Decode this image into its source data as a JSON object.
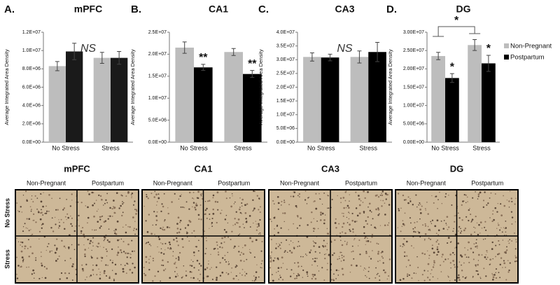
{
  "chart_data": [
    {
      "type": "bar",
      "panel_label": "A.",
      "title": "mPFC",
      "y_label": "Average Integrated Area Density",
      "categories": [
        "No Stress",
        "Stress"
      ],
      "series": [
        {
          "color": "#bdbdbd",
          "values": [
            8300000,
            9200000
          ],
          "errors": [
            500000,
            600000
          ]
        },
        {
          "color": "#1a1a1a",
          "values": [
            9900000,
            9200000
          ],
          "errors": [
            900000,
            700000
          ]
        }
      ],
      "annotation": "NS",
      "ylim": [
        0,
        12000000
      ],
      "yticks": [
        {
          "value": 0,
          "label": "0.0E+00"
        },
        {
          "value": 2000000,
          "label": "2.0E+06"
        },
        {
          "value": 4000000,
          "label": "4.0E+06"
        },
        {
          "value": 6000000,
          "label": "6.0E+06"
        },
        {
          "value": 8000000,
          "label": "8.0E+06"
        },
        {
          "value": 10000000,
          "label": "1.0E+07"
        },
        {
          "value": 12000000,
          "label": "1.2E+07"
        }
      ]
    },
    {
      "type": "bar",
      "panel_label": "B.",
      "title": "CA1",
      "y_label": "Average Integrated Area Density",
      "categories": [
        "No Stress",
        "Stress"
      ],
      "series": [
        {
          "color": "#bdbdbd",
          "values": [
            21500000,
            20500000
          ],
          "errors": [
            1300000,
            800000
          ]
        },
        {
          "color": "#000000",
          "values": [
            17000000,
            15500000
          ],
          "errors": [
            700000,
            800000
          ],
          "significance": [
            "**",
            "**"
          ]
        }
      ],
      "ylim": [
        0,
        25000000
      ],
      "yticks": [
        {
          "value": 0,
          "label": "0.0E+00"
        },
        {
          "value": 5000000,
          "label": "5.0E+06"
        },
        {
          "value": 10000000,
          "label": "1.0E+07"
        },
        {
          "value": 15000000,
          "label": "1.5E+07"
        },
        {
          "value": 20000000,
          "label": "2.0E+07"
        },
        {
          "value": 25000000,
          "label": "2.5E+07"
        }
      ]
    },
    {
      "type": "bar",
      "panel_label": "C.",
      "title": "CA3",
      "y_label": "Average Integrated Area Density",
      "categories": [
        "No Stress",
        "Stress"
      ],
      "series": [
        {
          "color": "#bdbdbd",
          "values": [
            31000000,
            31000000
          ],
          "errors": [
            1500000,
            2200000
          ]
        },
        {
          "color": "#000000",
          "values": [
            30800000,
            32800000
          ],
          "errors": [
            1200000,
            3500000
          ]
        }
      ],
      "annotation": "NS",
      "ylim": [
        0,
        40000000
      ],
      "yticks": [
        {
          "value": 0,
          "label": "0.0E+00"
        },
        {
          "value": 5000000,
          "label": "5.0E+06"
        },
        {
          "value": 10000000,
          "label": "1.0E+07"
        },
        {
          "value": 15000000,
          "label": "1.5E+07"
        },
        {
          "value": 20000000,
          "label": "2.0E+07"
        },
        {
          "value": 25000000,
          "label": "2.5E+07"
        },
        {
          "value": 30000000,
          "label": "3.0E+07"
        },
        {
          "value": 35000000,
          "label": "3.5E+07"
        },
        {
          "value": 40000000,
          "label": "4.0E+07"
        }
      ]
    },
    {
      "type": "bar",
      "panel_label": "D.",
      "title": "DG",
      "y_label": "Average Integrated Area Density",
      "categories": [
        "No Stress",
        "Stress"
      ],
      "series": [
        {
          "name": "Non-Pregnant",
          "color": "#bdbdbd",
          "values": [
            23500000,
            26500000
          ],
          "errors": [
            1000000,
            1500000
          ]
        },
        {
          "name": "Postpartum",
          "color": "#000000",
          "values": [
            17500000,
            21500000
          ],
          "errors": [
            1200000,
            2200000
          ],
          "significance": [
            "*",
            "*"
          ]
        }
      ],
      "bracket_label": "*",
      "legend": "right",
      "ylim": [
        0,
        30000000
      ],
      "yticks": [
        {
          "value": 0,
          "label": "0.00E+00"
        },
        {
          "value": 5000000,
          "label": "5.00E+06"
        },
        {
          "value": 10000000,
          "label": "1.00E+07"
        },
        {
          "value": 15000000,
          "label": "1.50E+07"
        },
        {
          "value": 20000000,
          "label": "2.00E+07"
        },
        {
          "value": 25000000,
          "label": "2.50E+07"
        },
        {
          "value": 30000000,
          "label": "3.00E+07"
        }
      ]
    }
  ],
  "micrographs": {
    "panels": [
      "mPFC",
      "CA1",
      "CA3",
      "DG"
    ],
    "columns": [
      "Non-Pregnant",
      "Postpartum"
    ],
    "rows": [
      "No Stress",
      "Stress"
    ]
  }
}
